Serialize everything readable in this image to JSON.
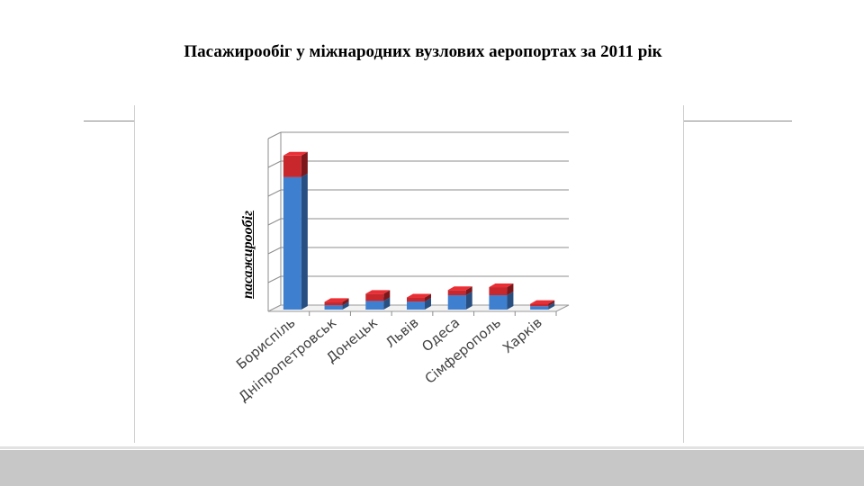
{
  "title": "Пасажирообіг у міжнародних вузлових аеропортах за 2011 рік",
  "chart_data": {
    "type": "bar",
    "stacked": true,
    "three_d": true,
    "title": "Пасажирообіг у міжнародних вузлових аеропортах за 2011 рік",
    "xlabel": "",
    "ylabel": "пасажирообіг",
    "categories": [
      "Бориспіль",
      "Дніпропетровськ",
      "Донецьк",
      "Львів",
      "Одеса",
      "Сімферополь",
      "Харків"
    ],
    "series": [
      {
        "values": [
          4.6,
          0.15,
          0.3,
          0.28,
          0.5,
          0.5,
          0.12
        ]
      },
      {
        "values": [
          0.75,
          0.12,
          0.25,
          0.14,
          0.18,
          0.28,
          0.08
        ]
      }
    ],
    "ylim": [
      0,
      6
    ],
    "grid": true,
    "legend": "none",
    "colors": [
      "#3f7fd0",
      "#c8272c"
    ]
  }
}
